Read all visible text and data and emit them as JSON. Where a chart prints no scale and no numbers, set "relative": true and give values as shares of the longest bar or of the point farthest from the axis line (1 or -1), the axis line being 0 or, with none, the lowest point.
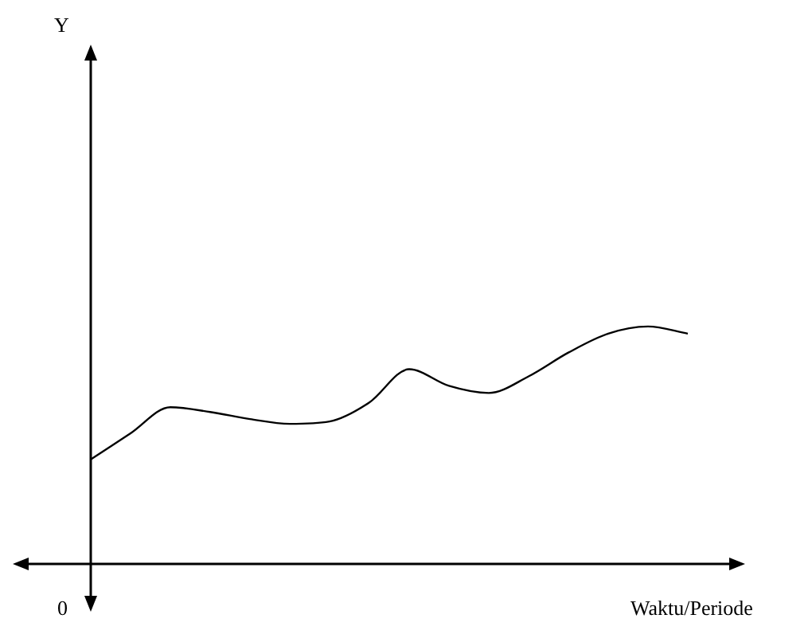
{
  "chart_data": {
    "type": "line",
    "relative": true,
    "xlabel": "Waktu/Periode",
    "annotations": [
      "Y",
      "0"
    ],
    "categories": [
      null,
      null,
      null,
      null,
      null,
      null,
      null,
      null,
      null,
      null,
      null,
      null,
      null,
      null,
      null,
      null
    ],
    "series": [
      {
        "color": "#000000",
        "values": [
          0.44,
          0.55,
          0.66,
          0.64,
          0.61,
          0.59,
          0.6,
          0.68,
          0.82,
          0.75,
          0.72,
          0.79,
          0.89,
          0.97,
          1.0,
          0.97
        ]
      }
    ],
    "grid": false,
    "legend": false,
    "marker": "none",
    "line_style": "solid"
  }
}
